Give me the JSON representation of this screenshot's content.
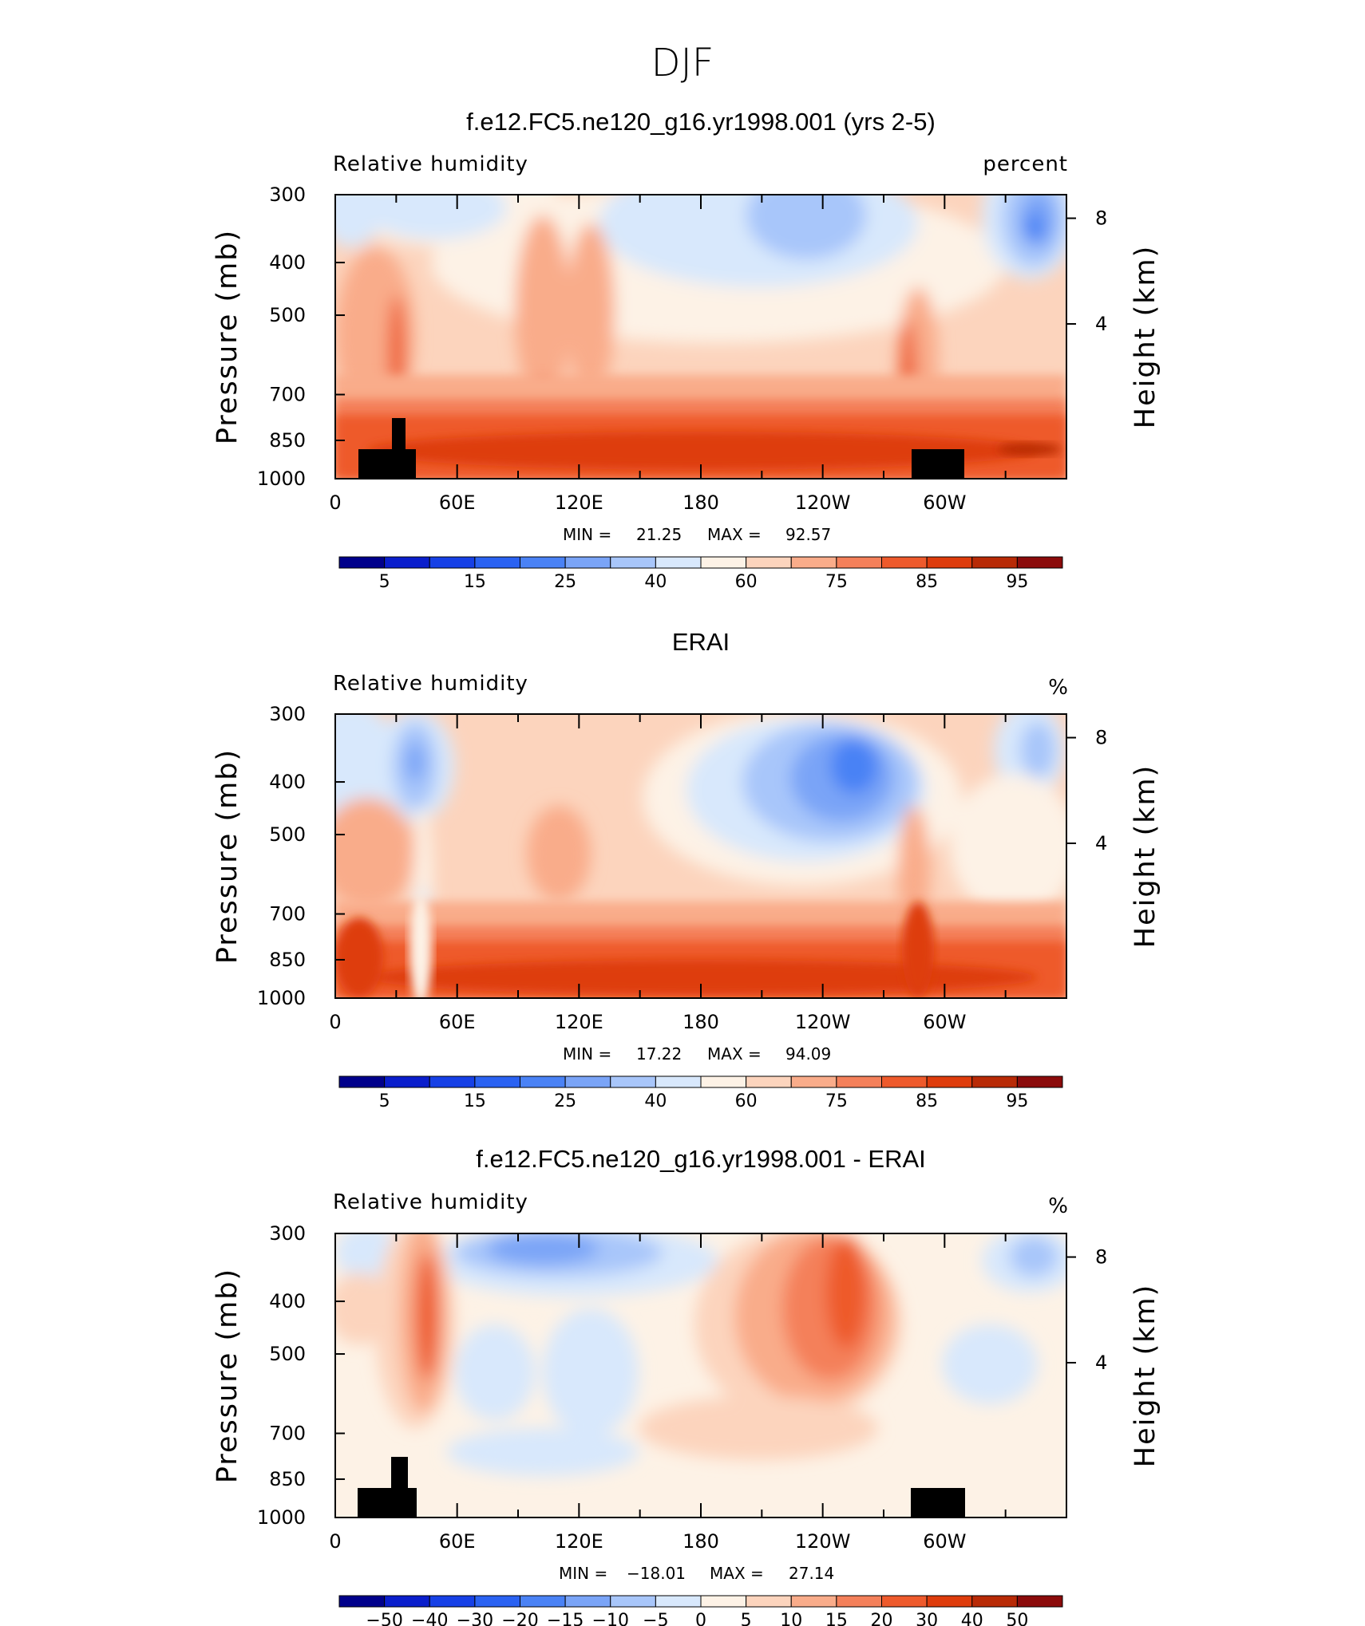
{
  "figure_title": "DJF",
  "chart_data": [
    {
      "type": "heatmap",
      "title": "f.e12.FC5.ne120_g16.yr1998.001 (yrs 2-5)",
      "left_label": "Relative humidity",
      "right_label": "percent",
      "ylabel": "Pressure (mb)",
      "y2label": "Height (km)",
      "y_ticks": [
        300,
        400,
        500,
        700,
        850,
        1000
      ],
      "y2_ticks": [
        "8",
        "4"
      ],
      "x_tick_labels": [
        "0",
        "60E",
        "120E",
        "180",
        "120W",
        "60W"
      ],
      "ylim": [
        1000,
        300
      ],
      "stats": {
        "min_label": "MIN =",
        "min": "21.25",
        "max_label": "MAX =",
        "max": "92.57"
      },
      "colorbar_labels": [
        "5",
        "15",
        "25",
        "40",
        "60",
        "75",
        "85",
        "95"
      ]
    },
    {
      "type": "heatmap",
      "title": "ERAI",
      "left_label": "Relative humidity",
      "right_label": "%",
      "ylabel": "Pressure (mb)",
      "y2label": "Height (km)",
      "y_ticks": [
        300,
        400,
        500,
        700,
        850,
        1000
      ],
      "y2_ticks": [
        "8",
        "4"
      ],
      "x_tick_labels": [
        "0",
        "60E",
        "120E",
        "180",
        "120W",
        "60W"
      ],
      "ylim": [
        1000,
        300
      ],
      "stats": {
        "min_label": "MIN =",
        "min": "17.22",
        "max_label": "MAX =",
        "max": "94.09"
      },
      "colorbar_labels": [
        "5",
        "15",
        "25",
        "40",
        "60",
        "75",
        "85",
        "95"
      ]
    },
    {
      "type": "heatmap",
      "title": "f.e12.FC5.ne120_g16.yr1998.001 - ERAI",
      "left_label": "Relative humidity",
      "right_label": "%",
      "ylabel": "Pressure (mb)",
      "y2label": "Height (km)",
      "y_ticks": [
        300,
        400,
        500,
        700,
        850,
        1000
      ],
      "y2_ticks": [
        "8",
        "4"
      ],
      "x_tick_labels": [
        "0",
        "60E",
        "120E",
        "180",
        "120W",
        "60W"
      ],
      "ylim": [
        1000,
        300
      ],
      "stats": {
        "min_label": "MIN =",
        "min": "−18.01",
        "max_label": "MAX =",
        "max": "27.14"
      },
      "colorbar_labels": [
        "−50",
        "−40",
        "−30",
        "−20",
        "−15",
        "−10",
        "−5",
        "0",
        "5",
        "10",
        "15",
        "20",
        "30",
        "40",
        "50"
      ]
    }
  ],
  "colors": {
    "palette": [
      "#00008b",
      "#0a1ecc",
      "#1640e6",
      "#2a62f2",
      "#4a82f5",
      "#7aa4f7",
      "#a8c6fa",
      "#d8e8fc",
      "#fdf2e6",
      "#fcd4bd",
      "#f9ac8a",
      "#f4805a",
      "#ee5a2c",
      "#de3c0c",
      "#b82a06",
      "#8b0b0b"
    ],
    "topography": "#000000"
  }
}
